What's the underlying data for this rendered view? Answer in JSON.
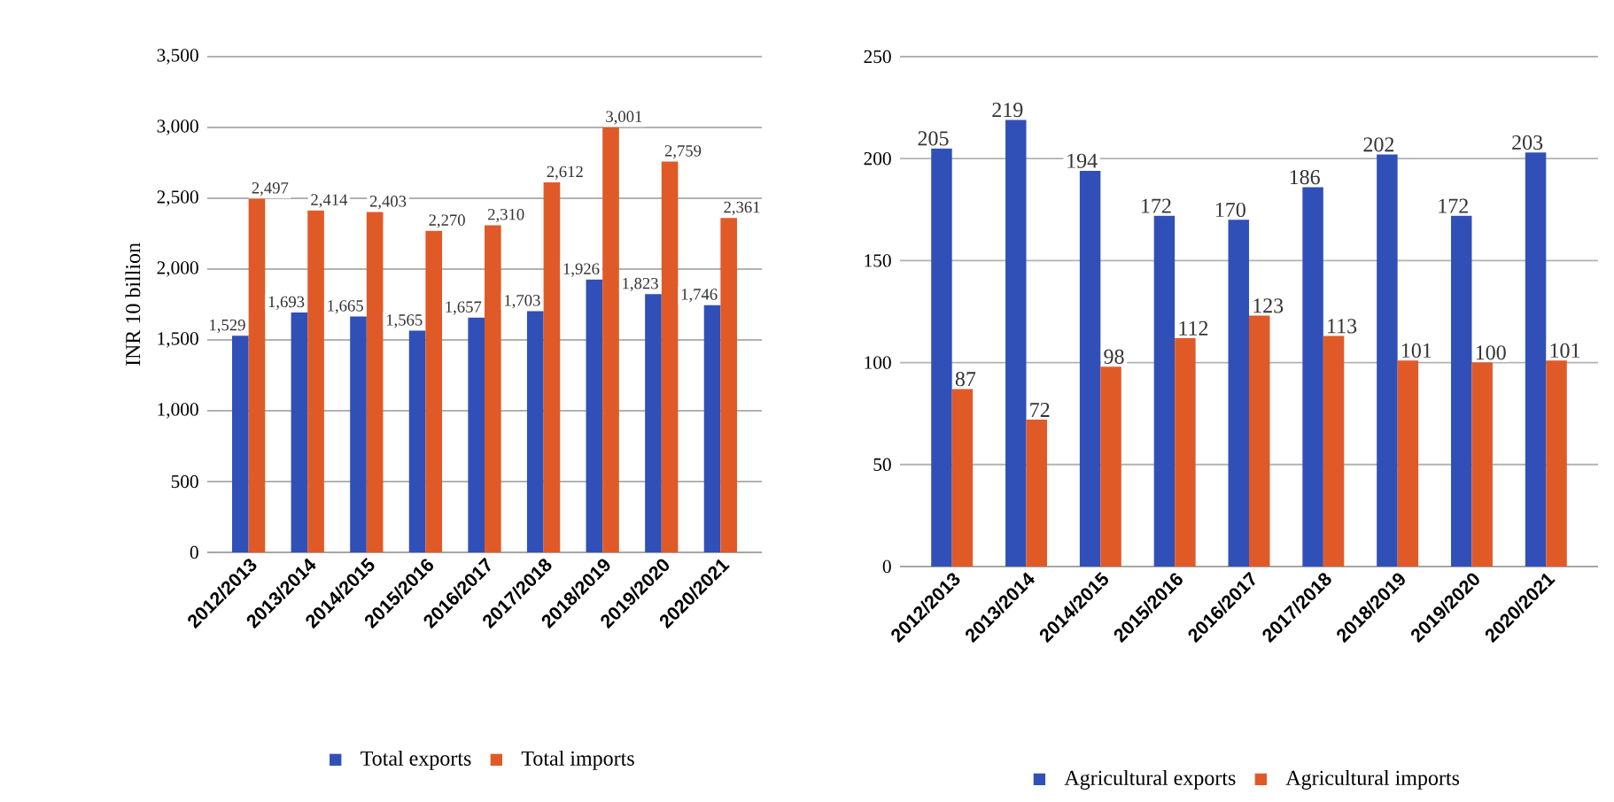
{
  "chart_data": [
    {
      "type": "bar",
      "ylabel": "INR 10 billion",
      "categories": [
        "2012/2013",
        "2013/2014",
        "2014/2015",
        "2015/2016",
        "2016/2017",
        "2017/2018",
        "2018/2019",
        "2019/2020",
        "2020/2021"
      ],
      "series": [
        {
          "name": "Total exports",
          "color": "#3050b8",
          "values": [
            1529,
            1693,
            1665,
            1565,
            1657,
            1703,
            1926,
            1823,
            1746
          ],
          "value_labels": [
            "1,529",
            "1,693",
            "1,665",
            "1,565",
            "1,657",
            "1,703",
            "1,926",
            "1,823",
            "1,746"
          ]
        },
        {
          "name": "Total imports",
          "color": "#e05a28",
          "values": [
            2497,
            2414,
            2403,
            2270,
            2310,
            2612,
            3001,
            2759,
            2361
          ],
          "value_labels": [
            "2,497",
            "2,414",
            "2,403",
            "2,270",
            "2,310",
            "2,612",
            "3,001",
            "2,759",
            "2,361"
          ]
        }
      ],
      "ylim": [
        0,
        3500
      ],
      "yticks": [
        0,
        500,
        {
          "value": 1000,
          "label": "1,000"
        },
        {
          "value": 1500,
          "label": "1,500"
        },
        {
          "value": 2000,
          "label": "2,000"
        },
        {
          "value": 2500,
          "label": "2,500"
        },
        {
          "value": 3000,
          "label": "3,000"
        },
        {
          "value": 3500,
          "label": "3,500"
        }
      ],
      "grid": "y",
      "legend": "bottom"
    },
    {
      "type": "bar",
      "categories": [
        "2012/2013",
        "2013/2014",
        "2014/2015",
        "2015/2016",
        "2016/2017",
        "2017/2018",
        "2018/2019",
        "2019/2020",
        "2020/2021"
      ],
      "series": [
        {
          "name": "Agricultural exports",
          "color": "#3050b8",
          "values": [
            205,
            219,
            194,
            172,
            170,
            186,
            202,
            172,
            203
          ],
          "value_labels": [
            "205",
            "219",
            "194",
            "172",
            "170",
            "186",
            "202",
            "172",
            "203"
          ]
        },
        {
          "name": "Agricultural imports",
          "color": "#e05a28",
          "values": [
            87,
            72,
            98,
            112,
            123,
            113,
            101,
            100,
            101
          ],
          "value_labels": [
            "87",
            "72",
            "98",
            "112",
            "123",
            "113",
            "101",
            "100",
            "101"
          ]
        }
      ],
      "ylim": [
        0,
        250
      ],
      "yticks": [
        0,
        50,
        100,
        150,
        200,
        250
      ],
      "grid": "y",
      "legend": "bottom"
    }
  ]
}
